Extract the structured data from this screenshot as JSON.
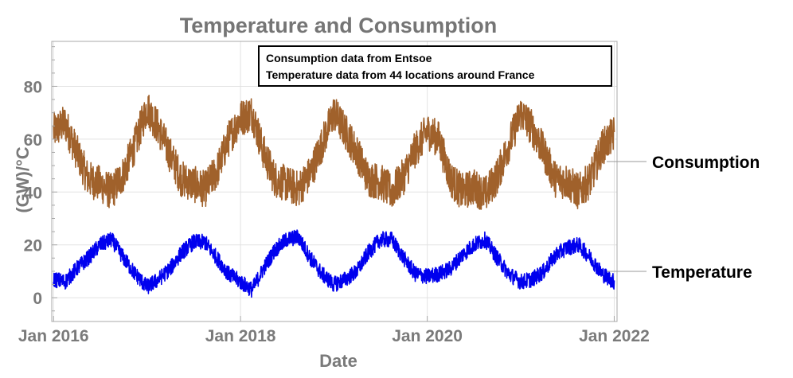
{
  "chart_data": {
    "type": "line",
    "title": "Temperature and Consumption",
    "xlabel": "Date",
    "ylabel": "(GW)/°C",
    "xlim": [
      "2015-12-25",
      "2022-01-12"
    ],
    "ylim": [
      -9,
      97
    ],
    "x_ticks": [
      {
        "date": "2016-01-01",
        "label": "Jan 2016"
      },
      {
        "date": "2018-01-01",
        "label": "Jan 2018"
      },
      {
        "date": "2020-01-01",
        "label": "Jan 2020"
      },
      {
        "date": "2022-01-01",
        "label": "Jan 2022"
      }
    ],
    "y_ticks": [
      0,
      20,
      40,
      60,
      80
    ],
    "grid": true,
    "annotation": [
      "Consumption data from Entsoe",
      "Temperature data from 44 locations around France"
    ],
    "series": [
      {
        "name": "Consumption",
        "color": "#a0612b",
        "x": [
          "2016-01-01",
          "2016-02-15",
          "2016-04-01",
          "2016-05-15",
          "2016-07-01",
          "2016-08-15",
          "2016-10-01",
          "2016-11-15",
          "2017-01-01",
          "2017-02-15",
          "2017-04-01",
          "2017-05-15",
          "2017-07-01",
          "2017-08-15",
          "2017-10-01",
          "2017-11-15",
          "2018-01-01",
          "2018-02-15",
          "2018-04-01",
          "2018-05-15",
          "2018-07-01",
          "2018-08-15",
          "2018-10-01",
          "2018-11-15",
          "2019-01-01",
          "2019-02-15",
          "2019-04-01",
          "2019-05-15",
          "2019-07-01",
          "2019-08-15",
          "2019-10-01",
          "2019-11-15",
          "2020-01-01",
          "2020-02-15",
          "2020-04-01",
          "2020-05-15",
          "2020-07-01",
          "2020-08-15",
          "2020-10-01",
          "2020-11-15",
          "2021-01-01",
          "2021-02-15",
          "2021-04-01",
          "2021-05-15",
          "2021-07-01",
          "2021-08-15",
          "2021-10-01",
          "2021-11-15",
          "2022-01-01"
        ],
        "values": [
          63,
          66,
          55,
          45,
          43,
          40,
          47,
          58,
          72,
          64,
          54,
          45,
          43,
          41,
          48,
          60,
          68,
          70,
          55,
          45,
          43,
          41,
          47,
          58,
          70,
          63,
          55,
          45,
          44,
          40,
          46,
          56,
          63,
          60,
          45,
          40,
          42,
          39,
          46,
          58,
          70,
          64,
          55,
          45,
          44,
          40,
          45,
          57,
          62
        ],
        "amplitude": 7
      },
      {
        "name": "Temperature",
        "color": "#0000ee",
        "x": [
          "2016-01-01",
          "2016-02-15",
          "2016-04-01",
          "2016-05-15",
          "2016-07-01",
          "2016-08-15",
          "2016-10-01",
          "2016-11-15",
          "2017-01-01",
          "2017-02-15",
          "2017-04-01",
          "2017-05-15",
          "2017-07-01",
          "2017-08-15",
          "2017-10-01",
          "2017-11-15",
          "2018-01-01",
          "2018-02-15",
          "2018-04-01",
          "2018-05-15",
          "2018-07-01",
          "2018-08-15",
          "2018-10-01",
          "2018-11-15",
          "2019-01-01",
          "2019-02-15",
          "2019-04-01",
          "2019-05-15",
          "2019-07-01",
          "2019-08-15",
          "2019-10-01",
          "2019-11-15",
          "2020-01-01",
          "2020-02-15",
          "2020-04-01",
          "2020-05-15",
          "2020-07-01",
          "2020-08-15",
          "2020-10-01",
          "2020-11-15",
          "2021-01-01",
          "2021-02-15",
          "2021-04-01",
          "2021-05-15",
          "2021-07-01",
          "2021-08-15",
          "2021-10-01",
          "2021-11-15",
          "2022-01-01"
        ],
        "values": [
          7,
          6,
          11,
          15,
          20,
          22,
          15,
          9,
          4,
          7,
          11,
          17,
          21,
          21,
          15,
          9,
          6,
          3,
          11,
          18,
          22,
          23,
          15,
          9,
          5,
          7,
          10,
          17,
          22,
          22,
          15,
          9,
          8,
          9,
          11,
          16,
          20,
          22,
          15,
          9,
          6,
          7,
          10,
          16,
          19,
          20,
          15,
          9,
          6
        ],
        "amplitude": 3
      }
    ]
  }
}
